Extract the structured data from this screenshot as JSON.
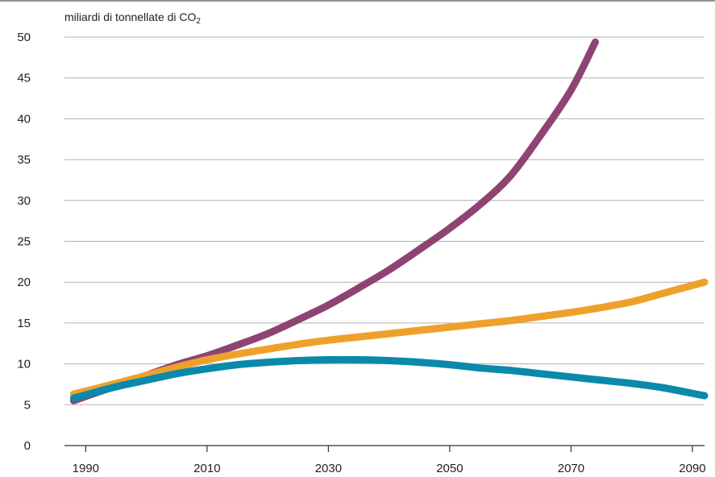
{
  "chart_data": {
    "type": "line",
    "title": "",
    "xlabel": "",
    "ylabel": "miliardi di tonnellate di CO",
    "ylabel_subscript": "2",
    "xlim": [
      1986.5,
      2092
    ],
    "ylim": [
      0,
      50
    ],
    "y_ticks": [
      0,
      5,
      10,
      15,
      20,
      25,
      30,
      35,
      40,
      45,
      50
    ],
    "x_ticks": [
      1990,
      2010,
      2030,
      2050,
      2070,
      2090
    ],
    "grid": "horizontal",
    "legend": "none",
    "series": [
      {
        "color": "#8e4472",
        "points": [
          [
            1988,
            5.5
          ],
          [
            1995,
            7.3
          ],
          [
            2000,
            8.6
          ],
          [
            2005,
            9.9
          ],
          [
            2010,
            11.0
          ],
          [
            2015,
            12.3
          ],
          [
            2020,
            13.7
          ],
          [
            2025,
            15.4
          ],
          [
            2030,
            17.2
          ],
          [
            2035,
            19.3
          ],
          [
            2040,
            21.5
          ],
          [
            2045,
            24.0
          ],
          [
            2050,
            26.6
          ],
          [
            2055,
            29.5
          ],
          [
            2060,
            33.0
          ],
          [
            2065,
            38.0
          ],
          [
            2070,
            43.5
          ],
          [
            2074,
            49.4
          ]
        ]
      },
      {
        "color": "#eea12a",
        "points": [
          [
            1988,
            6.3
          ],
          [
            1995,
            7.6
          ],
          [
            2000,
            8.6
          ],
          [
            2005,
            9.6
          ],
          [
            2010,
            10.5
          ],
          [
            2015,
            11.2
          ],
          [
            2020,
            11.8
          ],
          [
            2025,
            12.4
          ],
          [
            2030,
            12.9
          ],
          [
            2035,
            13.3
          ],
          [
            2040,
            13.7
          ],
          [
            2045,
            14.1
          ],
          [
            2050,
            14.5
          ],
          [
            2055,
            14.9
          ],
          [
            2060,
            15.3
          ],
          [
            2065,
            15.8
          ],
          [
            2070,
            16.3
          ],
          [
            2075,
            16.9
          ],
          [
            2080,
            17.6
          ],
          [
            2085,
            18.6
          ],
          [
            2092,
            20.0
          ]
        ]
      },
      {
        "color": "#0a8aaa",
        "points": [
          [
            1988,
            5.8
          ],
          [
            1995,
            7.2
          ],
          [
            2000,
            8.0
          ],
          [
            2005,
            8.8
          ],
          [
            2010,
            9.4
          ],
          [
            2015,
            9.9
          ],
          [
            2020,
            10.2
          ],
          [
            2025,
            10.4
          ],
          [
            2030,
            10.5
          ],
          [
            2035,
            10.5
          ],
          [
            2040,
            10.4
          ],
          [
            2045,
            10.2
          ],
          [
            2050,
            9.9
          ],
          [
            2055,
            9.5
          ],
          [
            2060,
            9.2
          ],
          [
            2065,
            8.8
          ],
          [
            2070,
            8.4
          ],
          [
            2075,
            8.0
          ],
          [
            2080,
            7.6
          ],
          [
            2085,
            7.1
          ],
          [
            2092,
            6.1
          ]
        ]
      }
    ]
  }
}
